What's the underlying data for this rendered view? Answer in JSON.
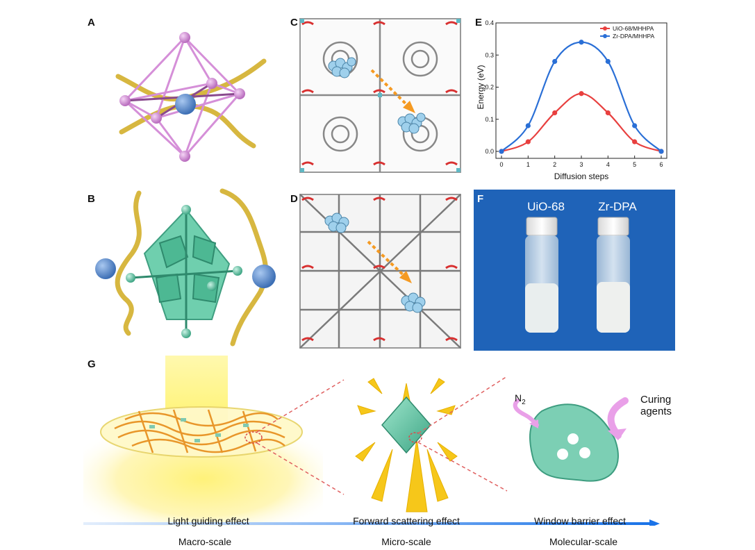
{
  "panel_labels": {
    "a": "A",
    "b": "B",
    "c": "C",
    "d": "D",
    "e": "E",
    "f": "F",
    "g": "G"
  },
  "chart_data": {
    "type": "line",
    "x": [
      0,
      1,
      2,
      3,
      4,
      5,
      6
    ],
    "xlabel": "Diffusion steps",
    "ylabel": "Energy (eV)",
    "xlim": [
      0,
      6
    ],
    "ylim": [
      0,
      0.4
    ],
    "xticks": [
      "0",
      "1",
      "2",
      "3",
      "4",
      "5",
      "6"
    ],
    "yticks": [
      "0.0",
      "0.1",
      "0.2",
      "0.3",
      "0.4"
    ],
    "legend_position": "top-right",
    "grid": false,
    "series": [
      {
        "name": "UiO-68/MHHPA",
        "color": "#e8403f",
        "values": [
          0,
          0.03,
          0.12,
          0.18,
          0.12,
          0.03,
          0
        ]
      },
      {
        "name": "Zr-DPA/MHHPA",
        "color": "#2a6fd6",
        "values": [
          0,
          0.08,
          0.28,
          0.34,
          0.28,
          0.08,
          0
        ]
      }
    ]
  },
  "photo": {
    "left_label": "UiO-68",
    "right_label": "Zr-DPA",
    "background": "#1f63b8"
  },
  "g_panel": {
    "n2_label": "N",
    "n2_sub": "2",
    "curing_line1": "Curing",
    "curing_line2": "agents",
    "captions": [
      "Light guiding effect",
      "Forward scattering effect",
      "Window barrier effect"
    ],
    "scales": [
      "Macro-scale",
      "Micro-scale",
      "Molecular-scale"
    ]
  },
  "colors": {
    "pink": "#d58fd8",
    "gold": "#d7b740",
    "teal": "#6fcfae",
    "blue_sphere": "#5b8fd1",
    "arrow_orange": "#f59a22",
    "scale_arrow": "#1a73e8"
  }
}
